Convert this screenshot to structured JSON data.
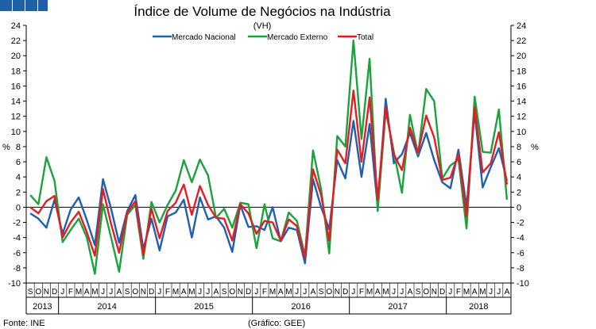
{
  "chart_data": {
    "type": "line",
    "title": "Índice de Volume de Negócios na Indústria",
    "subtitle": "(VH)",
    "ylabel_left": "%",
    "ylabel_right": "%",
    "ylim": [
      -10,
      24
    ],
    "yticks": [
      -10,
      -8,
      -6,
      -4,
      -2,
      0,
      2,
      4,
      6,
      8,
      10,
      12,
      14,
      16,
      18,
      20,
      22,
      24
    ],
    "grid": false,
    "legend_position": "top-center",
    "months": [
      "S",
      "O",
      "N",
      "D",
      "J",
      "F",
      "M",
      "A",
      "M",
      "J",
      "J",
      "A",
      "S",
      "O",
      "N",
      "D",
      "J",
      "F",
      "M",
      "A",
      "M",
      "J",
      "J",
      "A",
      "S",
      "O",
      "N",
      "D",
      "J",
      "F",
      "M",
      "A",
      "M",
      "J",
      "J",
      "A",
      "S",
      "O",
      "N",
      "D",
      "J",
      "F",
      "M",
      "A",
      "M",
      "J",
      "J",
      "A",
      "S",
      "O",
      "N",
      "D",
      "J",
      "F",
      "M",
      "A",
      "M",
      "J",
      "J",
      "A"
    ],
    "years": [
      {
        "label": "2013",
        "start": 0,
        "end": 3
      },
      {
        "label": "2014",
        "start": 4,
        "end": 15
      },
      {
        "label": "2015",
        "start": 16,
        "end": 27
      },
      {
        "label": "2016",
        "start": 28,
        "end": 39
      },
      {
        "label": "2017",
        "start": 40,
        "end": 51
      },
      {
        "label": "2018",
        "start": 52,
        "end": 59
      }
    ],
    "series": [
      {
        "name": "Mercado Nacional",
        "color": "#1f5fb0",
        "values": [
          -0.8,
          -1.5,
          -2.7,
          1.0,
          -3.5,
          -0.3,
          1.3,
          -1.7,
          -5.0,
          3.7,
          -0.2,
          -4.7,
          -0.5,
          1.6,
          -5.5,
          -1.5,
          -5.7,
          -1.2,
          -0.7,
          1.0,
          -4.0,
          1.3,
          -1.6,
          -1.2,
          -2.7,
          -5.9,
          0.3,
          -2.6,
          -2.5,
          -3.0,
          0.0,
          -4.5,
          -2.7,
          -3.0,
          -7.4,
          3.7,
          0.0,
          -2.9,
          6.2,
          3.8,
          11.4,
          4.0,
          11.0,
          0.0,
          14.3,
          5.8,
          7.0,
          9.8,
          6.7,
          9.8,
          6.2,
          3.3,
          2.5,
          7.6,
          0.0,
          12.5,
          2.6,
          5.3,
          7.8,
          3.5
        ]
      },
      {
        "name": "Mercado Externo",
        "color": "#1aa33c",
        "values": [
          1.6,
          0.4,
          6.6,
          3.5,
          -4.6,
          -3.0,
          -1.5,
          -4.0,
          -8.8,
          0.4,
          -4.0,
          -8.5,
          -1.0,
          0.3,
          -6.8,
          0.7,
          -2.0,
          0.3,
          2.2,
          6.2,
          3.3,
          6.3,
          4.2,
          -1.4,
          -0.2,
          -2.7,
          0.6,
          0.4,
          -5.4,
          0.4,
          -4.1,
          -4.5,
          -0.7,
          -1.8,
          -6.4,
          7.5,
          2.4,
          -6.1,
          9.4,
          8.0,
          22.0,
          9.0,
          19.6,
          -0.5,
          12.7,
          7.3,
          1.9,
          12.2,
          7.0,
          15.6,
          14.0,
          3.8,
          5.5,
          6.3,
          -2.8,
          14.6,
          7.3,
          7.2,
          12.9,
          1.0
        ]
      },
      {
        "name": "Total",
        "color": "#e51c23",
        "values": [
          0.0,
          -0.8,
          0.8,
          1.5,
          -4.0,
          -2.0,
          -0.6,
          -3.3,
          -6.4,
          2.4,
          -2.2,
          -6.0,
          -0.7,
          0.8,
          -6.3,
          -0.2,
          -4.1,
          -0.5,
          0.6,
          3.0,
          -1.0,
          2.8,
          0.3,
          -1.4,
          -1.5,
          -4.4,
          0.4,
          -0.8,
          -3.5,
          -1.8,
          -2.0,
          -4.4,
          -1.6,
          -2.5,
          -6.7,
          5.0,
          1.6,
          -4.4,
          7.6,
          5.8,
          15.4,
          6.0,
          14.5,
          1.0,
          13.2,
          7.0,
          4.9,
          10.5,
          7.2,
          12.1,
          9.2,
          3.6,
          3.9,
          7.0,
          -1.2,
          13.2,
          4.6,
          5.8,
          9.9,
          3.0
        ]
      }
    ],
    "source": "Fonte: INE",
    "credit": "(Gráfico: GEE)"
  }
}
